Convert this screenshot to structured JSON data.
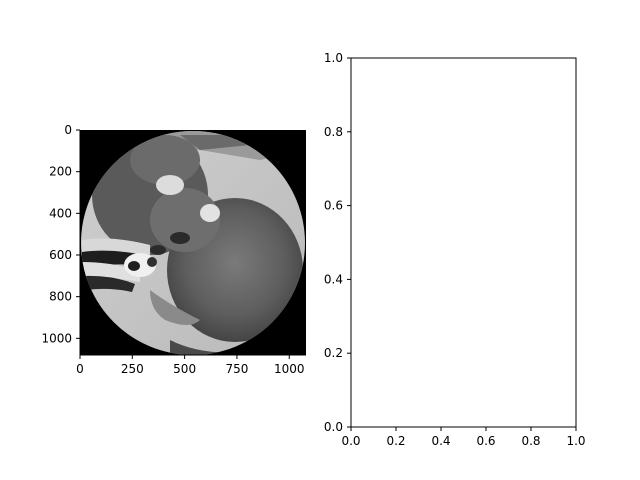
{
  "chart_data": [
    {
      "type": "image",
      "image_description": "grayscale photograph of ring-tailed lemurs huddled together, cropped to a circle on a black square background",
      "x_ticks": [
        0,
        250,
        500,
        750,
        1000
      ],
      "y_ticks": [
        0,
        200,
        400,
        600,
        800,
        1000
      ],
      "xlim": [
        0,
        1080
      ],
      "ylim": [
        1080,
        0
      ],
      "y_inverted": true,
      "grid": false
    },
    {
      "type": "empty",
      "x_ticks": [
        0.0,
        0.2,
        0.4,
        0.6,
        0.8,
        1.0
      ],
      "y_ticks": [
        0.0,
        0.2,
        0.4,
        0.6,
        0.8,
        1.0
      ],
      "x_tick_labels": [
        "0.0",
        "0.2",
        "0.4",
        "0.6",
        "0.8",
        "1.0"
      ],
      "y_tick_labels": [
        "0.0",
        "0.2",
        "0.4",
        "0.6",
        "0.8",
        "1.0"
      ],
      "xlim": [
        0,
        1
      ],
      "ylim": [
        0,
        1
      ],
      "grid": false
    }
  ],
  "colors": {
    "background": "#ffffff",
    "axes": "#000000",
    "image_background": "#000000"
  }
}
